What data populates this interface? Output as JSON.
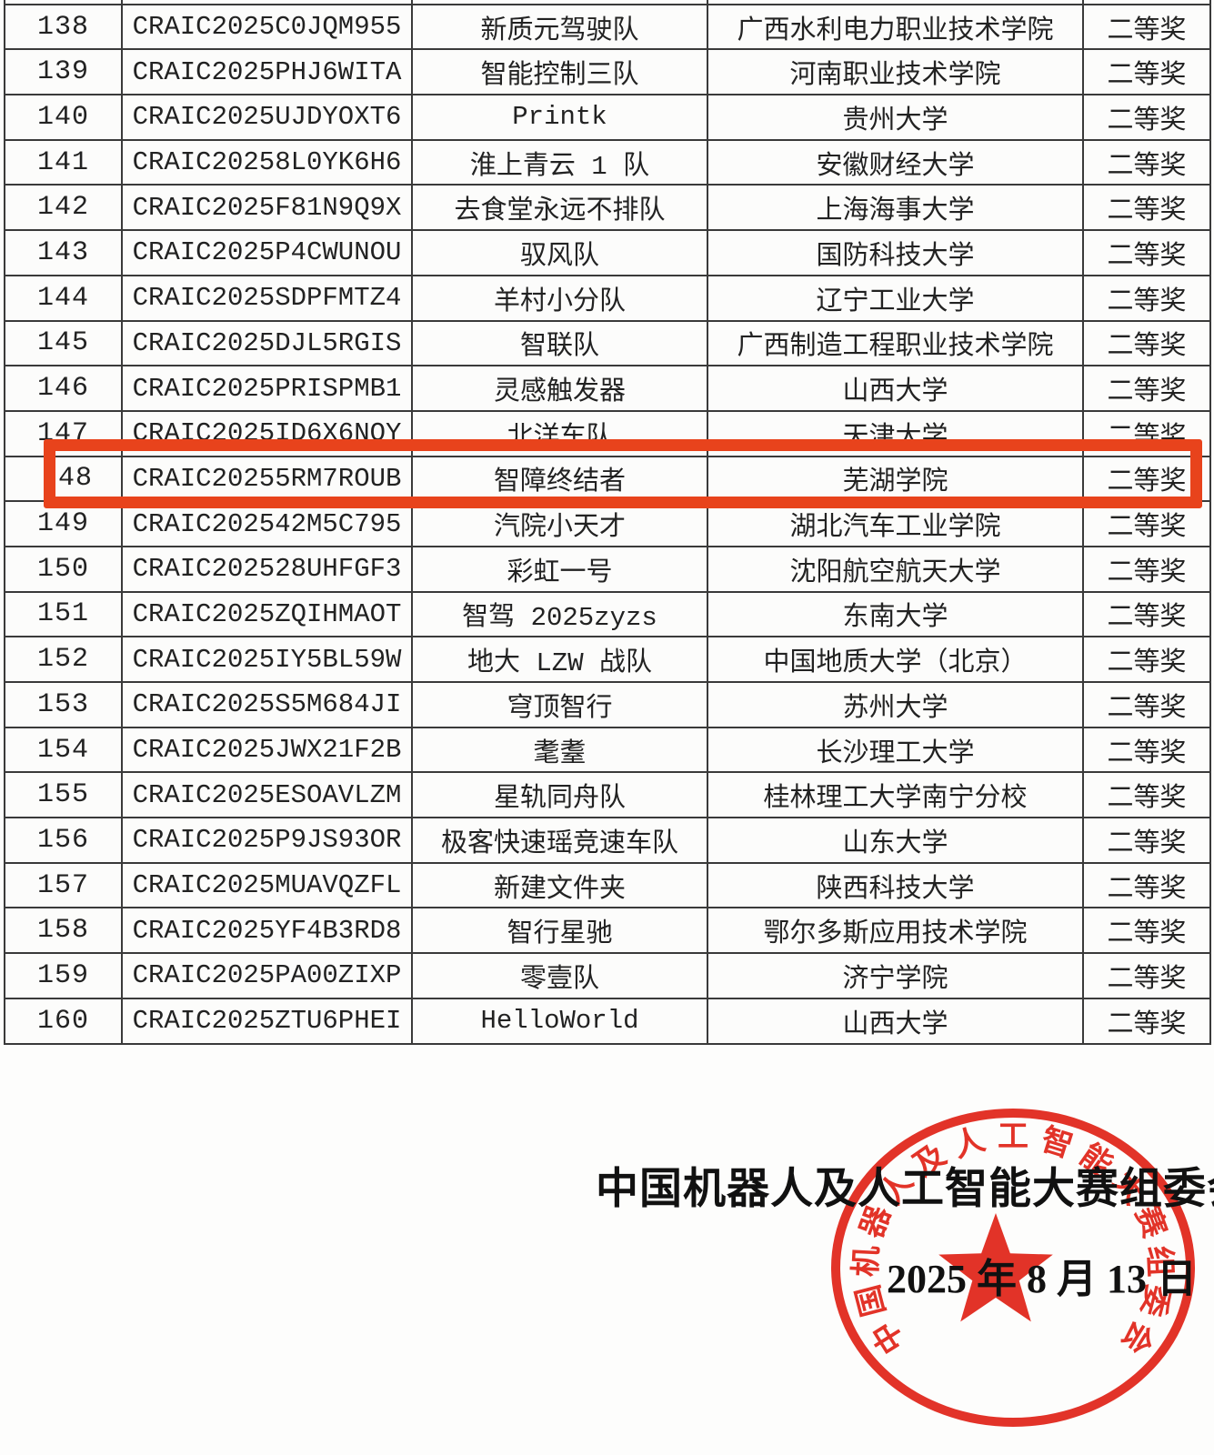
{
  "table": {
    "rows": [
      {
        "no": "138",
        "id": "CRAIC2025C0JQM955",
        "team": "新质元驾驶队",
        "school": "广西水利电力职业技术学院",
        "award": "二等奖"
      },
      {
        "no": "139",
        "id": "CRAIC2025PHJ6WITA",
        "team": "智能控制三队",
        "school": "河南职业技术学院",
        "award": "二等奖"
      },
      {
        "no": "140",
        "id": "CRAIC2025UJDYOXT6",
        "team": "Printk",
        "school": "贵州大学",
        "award": "二等奖"
      },
      {
        "no": "141",
        "id": "CRAIC20258L0YK6H6",
        "team": "淮上青云 1 队",
        "school": "安徽财经大学",
        "award": "二等奖"
      },
      {
        "no": "142",
        "id": "CRAIC2025F81N9Q9X",
        "team": "去食堂永远不排队",
        "school": "上海海事大学",
        "award": "二等奖"
      },
      {
        "no": "143",
        "id": "CRAIC2025P4CWUNOU",
        "team": "驭风队",
        "school": "国防科技大学",
        "award": "二等奖"
      },
      {
        "no": "144",
        "id": "CRAIC2025SDPFMTZ4",
        "team": "羊村小分队",
        "school": "辽宁工业大学",
        "award": "二等奖"
      },
      {
        "no": "145",
        "id": "CRAIC2025DJL5RGIS",
        "team": "智联队",
        "school": "广西制造工程职业技术学院",
        "award": "二等奖"
      },
      {
        "no": "146",
        "id": "CRAIC2025PRISPMB1",
        "team": "灵感触发器",
        "school": "山西大学",
        "award": "二等奖"
      },
      {
        "no": "147",
        "id": "CRAIC2025ID6X6NOY",
        "team": "北洋车队",
        "school": "天津大学",
        "award": "二等奖"
      },
      {
        "no": "48",
        "id": "CRAIC20255RM7ROUB",
        "team": "智障终结者",
        "school": "芜湖学院",
        "award": "二等奖",
        "highlight": true
      },
      {
        "no": "149",
        "id": "CRAIC202542M5C795",
        "team": "汽院小天才",
        "school": "湖北汽车工业学院",
        "award": "二等奖"
      },
      {
        "no": "150",
        "id": "CRAIC202528UHFGF3",
        "team": "彩虹一号",
        "school": "沈阳航空航天大学",
        "award": "二等奖"
      },
      {
        "no": "151",
        "id": "CRAIC2025ZQIHMAOT",
        "team": "智驾 2025zyzs",
        "school": "东南大学",
        "award": "二等奖"
      },
      {
        "no": "152",
        "id": "CRAIC2025IY5BL59W",
        "team": "地大 LZW 战队",
        "school": "中国地质大学（北京）",
        "award": "二等奖"
      },
      {
        "no": "153",
        "id": "CRAIC2025S5M684JI",
        "team": "穹顶智行",
        "school": "苏州大学",
        "award": "二等奖"
      },
      {
        "no": "154",
        "id": "CRAIC2025JWX21F2B",
        "team": "耄耋",
        "school": "长沙理工大学",
        "award": "二等奖"
      },
      {
        "no": "155",
        "id": "CRAIC2025ESOAVLZM",
        "team": "星轨同舟队",
        "school": "桂林理工大学南宁分校",
        "award": "二等奖"
      },
      {
        "no": "156",
        "id": "CRAIC2025P9JS93OR",
        "team": "极客快速瑶竞速车队",
        "school": "山东大学",
        "award": "二等奖"
      },
      {
        "no": "157",
        "id": "CRAIC2025MUAVQZFL",
        "team": "新建文件夹",
        "school": "陕西科技大学",
        "award": "二等奖"
      },
      {
        "no": "158",
        "id": "CRAIC2025YF4B3RD8",
        "team": "智行星驰",
        "school": "鄂尔多斯应用技术学院",
        "award": "二等奖"
      },
      {
        "no": "159",
        "id": "CRAIC2025PA00ZIXP",
        "team": "零壹队",
        "school": "济宁学院",
        "award": "二等奖"
      },
      {
        "no": "160",
        "id": "CRAIC2025ZTU6PHEI",
        "team": "HelloWorld",
        "school": "山西大学",
        "award": "二等奖"
      }
    ]
  },
  "highlight": {
    "color": "#e8431c"
  },
  "footer": {
    "committee": "中国机器人及人工智能大赛组委会",
    "date": "2025 年 8 月 13 日"
  },
  "stamp": {
    "ring_text": "中国机器人及人工智能大赛组委会",
    "center_icon": "red-star-icon",
    "color": "#e02419"
  }
}
